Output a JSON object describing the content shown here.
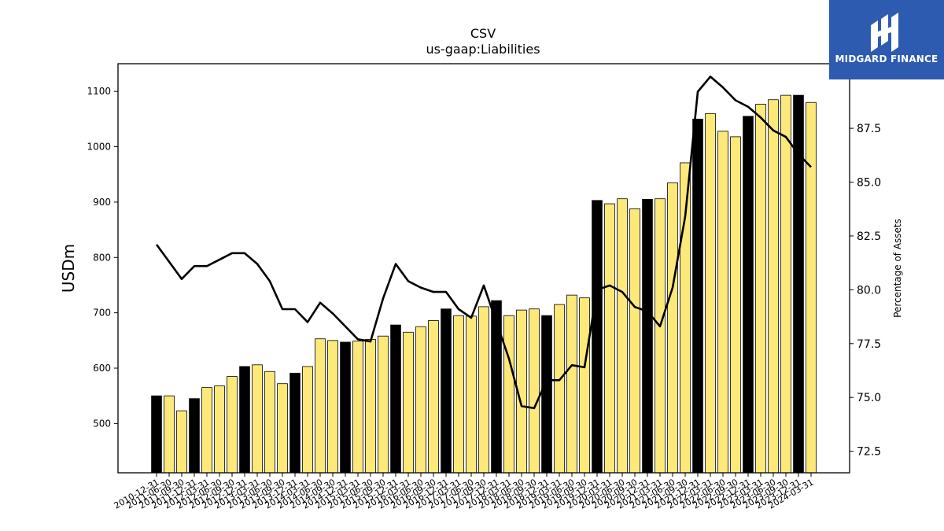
{
  "logo": {
    "text": "MIDGARD FINANCE",
    "color": "#2d5bb0"
  },
  "chart_data": {
    "type": "bar",
    "title": "CSV",
    "subtitle": "us-gaap:Liabilities",
    "ylabel": "USDm",
    "y2label": "Percentage of Assets",
    "ylim": [
      411,
      1150
    ],
    "y2lim": [
      71.5,
      90.5
    ],
    "yticks": [
      500,
      600,
      700,
      800,
      900,
      1000,
      1100
    ],
    "y2ticks": [
      72.5,
      75.0,
      77.5,
      80.0,
      82.5,
      85.0,
      87.5,
      90.0
    ],
    "colors": {
      "annual_bar": "#000000",
      "quarterly_bar": "#fde97a",
      "line": "#000000"
    },
    "categories": [
      "2010-12-31",
      "2011-06-30",
      "2011-09-30",
      "2011-12-31",
      "2012-03-31",
      "2012-06-30",
      "2012-09-30",
      "2012-12-31",
      "2013-03-31",
      "2013-06-30",
      "2013-09-30",
      "2013-12-31",
      "2014-03-31",
      "2014-06-30",
      "2014-09-30",
      "2014-12-31",
      "2015-03-31",
      "2015-06-30",
      "2015-09-30",
      "2015-12-31",
      "2016-03-31",
      "2016-06-30",
      "2016-09-30",
      "2016-12-31",
      "2017-03-31",
      "2017-06-30",
      "2017-09-30",
      "2017-12-31",
      "2018-03-31",
      "2018-06-30",
      "2018-09-30",
      "2018-12-31",
      "2019-03-31",
      "2019-06-30",
      "2019-09-30",
      "2019-12-31",
      "2020-03-31",
      "2020-06-30",
      "2020-09-30",
      "2020-12-31",
      "2021-03-31",
      "2021-06-30",
      "2021-09-30",
      "2021-12-31",
      "2022-03-31",
      "2022-06-30",
      "2022-09-30",
      "2022-12-31",
      "2023-03-31",
      "2023-06-30",
      "2023-09-30",
      "2023-12-31",
      "2024-03-31"
    ],
    "series": [
      {
        "name": "Liabilities",
        "values": [
          550,
          550,
          523,
          545,
          565,
          568,
          585,
          603,
          606,
          594,
          572,
          591,
          603,
          653,
          650,
          647,
          649,
          652,
          658,
          678,
          665,
          675,
          686,
          707,
          695,
          694,
          711,
          722,
          695,
          705,
          707,
          695,
          715,
          732,
          727,
          903,
          897,
          906,
          888,
          905,
          906,
          935,
          971,
          1050,
          1060,
          1028,
          1018,
          1055,
          1077,
          1085,
          1093,
          1093,
          1080
        ],
        "annual": [
          true,
          false,
          false,
          true,
          false,
          false,
          false,
          true,
          false,
          false,
          false,
          true,
          false,
          false,
          false,
          true,
          false,
          false,
          false,
          true,
          false,
          false,
          false,
          true,
          false,
          false,
          false,
          true,
          false,
          false,
          false,
          true,
          false,
          false,
          false,
          true,
          false,
          false,
          false,
          true,
          false,
          false,
          false,
          true,
          false,
          false,
          false,
          true,
          false,
          false,
          false,
          true,
          false
        ]
      },
      {
        "name": "Percentage of Assets",
        "axis": "right",
        "values": [
          82.1,
          81.3,
          80.5,
          81.1,
          81.1,
          81.4,
          81.7,
          81.7,
          81.2,
          80.4,
          79.1,
          79.1,
          78.5,
          79.4,
          78.9,
          78.3,
          77.7,
          77.6,
          79.6,
          81.2,
          80.4,
          80.1,
          79.9,
          79.9,
          79.1,
          78.7,
          80.2,
          78.5,
          76.8,
          74.6,
          74.5,
          75.8,
          75.8,
          76.5,
          76.4,
          80.0,
          80.2,
          79.9,
          79.2,
          79.0,
          78.3,
          80.1,
          83.4,
          89.2,
          89.9,
          89.4,
          88.8,
          88.5,
          88.0,
          87.4,
          87.1,
          86.3,
          85.7
        ]
      }
    ]
  }
}
